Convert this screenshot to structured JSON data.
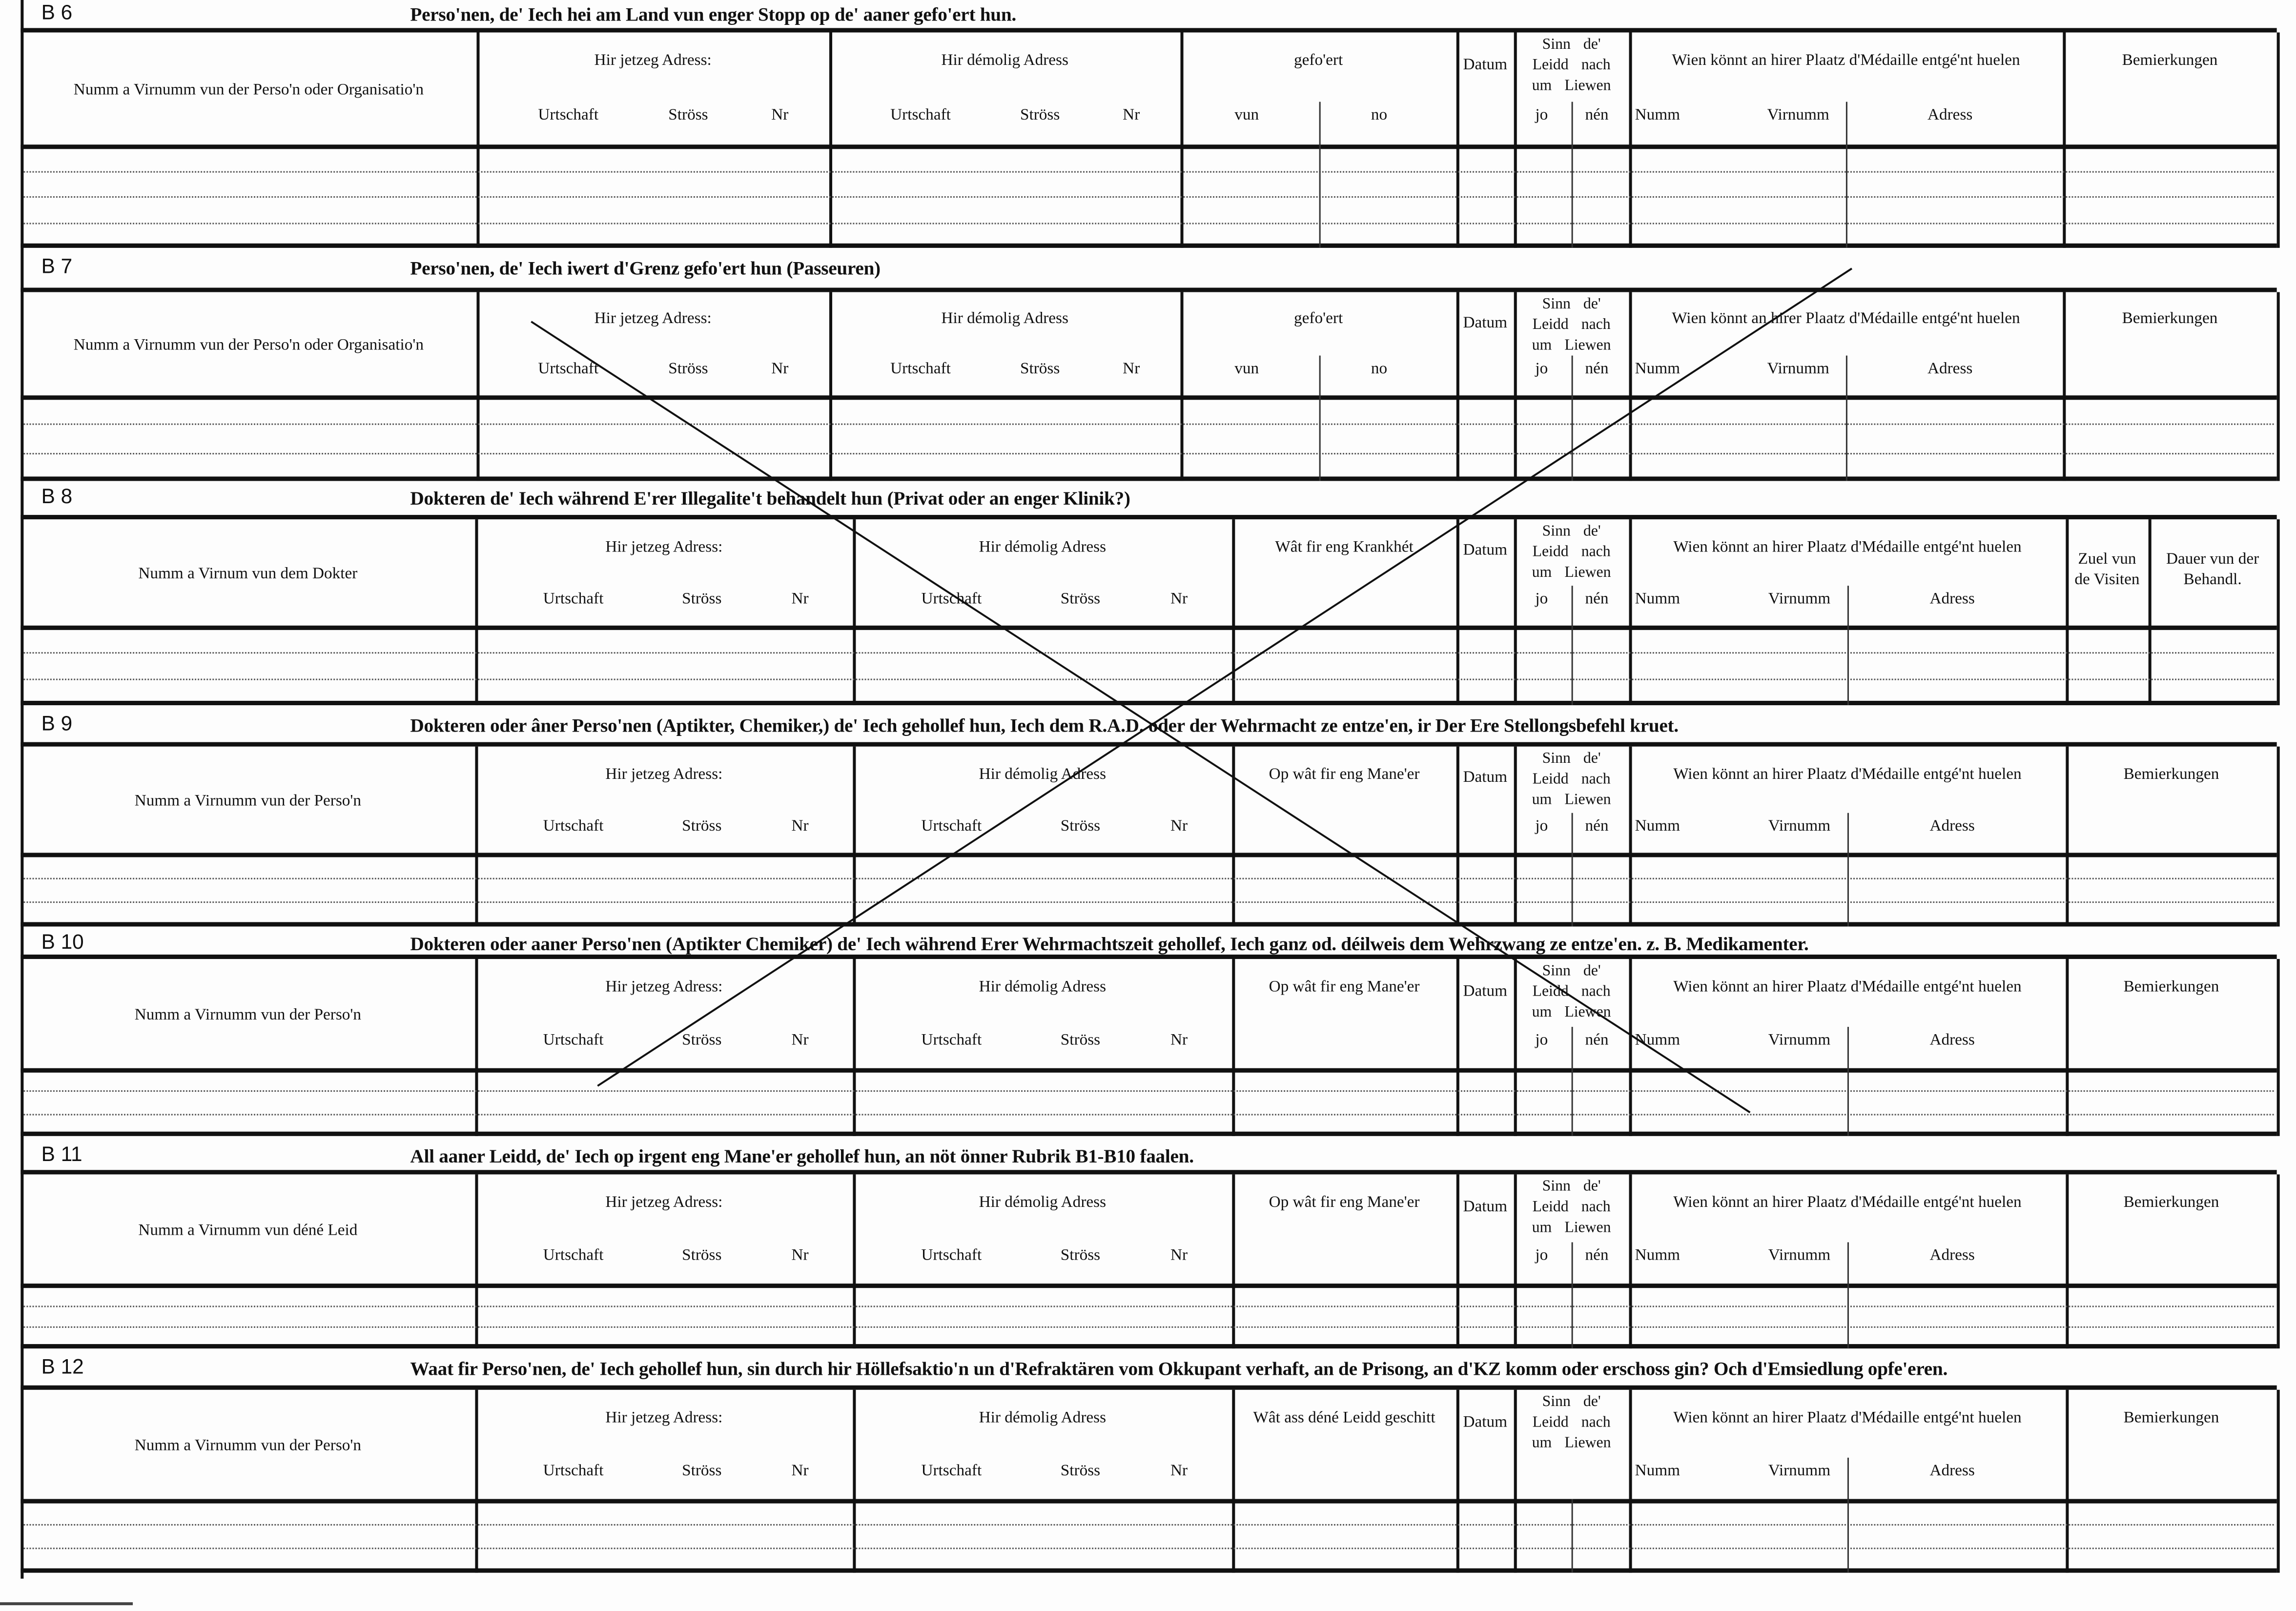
{
  "sections": [
    {
      "code": "B 6",
      "title": "Perso'nen, de' Iech hei am Land vun enger Stopp  op de' aaner gefo'ert hun.",
      "columns": [
        {
          "label": "Numm a Virnumm vun der Perso'n oder Organisatio'n"
        },
        {
          "label": "Hir jetzeg Adress:",
          "sub": [
            "Urtschaft",
            "Ströss",
            "Nr"
          ]
        },
        {
          "label": "Hir démolig Adress",
          "sub": [
            "Urtschaft",
            "Ströss",
            "Nr"
          ]
        },
        {
          "label": "gefo'ert",
          "sub": [
            "vun",
            "no"
          ]
        },
        {
          "label": "Datum"
        },
        {
          "label": "Sinn  de' Leidd  nach um Liewen",
          "sub": [
            "jo",
            "nén"
          ]
        },
        {
          "label": "Wien  könnt  an  hirer  Plaatz  d'Médaille entgé'nt huelen",
          "sub": [
            "Numm",
            "Virnumm",
            "Adress"
          ]
        },
        {
          "label": "Bemierkungen"
        }
      ]
    },
    {
      "code": "B 7",
      "title": "Perso'nen, de' Iech iwert d'Grenz gefo'ert hun  (Passeuren)",
      "columns": [
        {
          "label": "Numm a Virnumm vun der Perso'n oder Organisatio'n"
        },
        {
          "label": "Hir jetzeg Adress:",
          "sub": [
            "Urtschaft",
            "Ströss",
            "Nr"
          ]
        },
        {
          "label": "Hir démolig Adress",
          "sub": [
            "Urtschaft",
            "Ströss",
            "Nr"
          ]
        },
        {
          "label": "gefo'ert",
          "sub": [
            "vun",
            "no"
          ]
        },
        {
          "label": "Datum"
        },
        {
          "label": "Sinn  de' Leidd  nach um Liewen",
          "sub": [
            "jo",
            "nén"
          ]
        },
        {
          "label": "Wien  könnt  an  hirer  Plaatz  d'Médaille entgé'nt huelen",
          "sub": [
            "Numm",
            "Virnumm",
            "Adress"
          ]
        },
        {
          "label": "Bemierkungen"
        }
      ]
    },
    {
      "code": "B 8",
      "title": "Dokteren de' Iech während E'rer Illegalite't behandelt hun (Privat  oder an enger Klinik?)",
      "columns": [
        {
          "label": "Numm a Virnum vun dem Dokter"
        },
        {
          "label": "Hir jetzeg Adress:",
          "sub": [
            "Urtschaft",
            "Ströss",
            "Nr"
          ]
        },
        {
          "label": "Hir démolig Adress",
          "sub": [
            "Urtschaft",
            "Ströss",
            "Nr"
          ]
        },
        {
          "label": "Wât fir eng Krankhét"
        },
        {
          "label": "Datum"
        },
        {
          "label": "Sinn  de' Leidd  nach um Liewen",
          "sub": [
            "jo",
            "nén"
          ]
        },
        {
          "label": "Wien  könnt  an  hirer  Plaatz  d'Médaille entgé'nt huelen",
          "sub": [
            "Numm",
            "Virnumm",
            "Adress"
          ]
        },
        {
          "label": "Zuel vun de Visiten"
        },
        {
          "label": "Dauer vun der Behandl."
        }
      ]
    },
    {
      "code": "B 9",
      "title": "Dokteren oder âner Perso'nen (Aptikter, Chemiker,) de' Iech gehollef hun, Iech dem R.A.D. oder der Wehrmacht ze entze'en, ir Der Ere Stellongsbefehl kruet.",
      "columns": [
        {
          "label": "Numm a Virnumm vun der Perso'n"
        },
        {
          "label": "Hir jetzeg Adress:",
          "sub": [
            "Urtschaft",
            "Ströss",
            "Nr"
          ]
        },
        {
          "label": "Hir démolig Adress",
          "sub": [
            "Urtschaft",
            "Ströss",
            "Nr"
          ]
        },
        {
          "label": "Op wât fir eng Mane'er"
        },
        {
          "label": "Datum"
        },
        {
          "label": "Sinn  de' Leidd  nach um Liewen",
          "sub": [
            "jo",
            "nén"
          ]
        },
        {
          "label": "Wien  könnt  an  hirer  Plaatz  d'Médaille entgé'nt huelen",
          "sub": [
            "Numm",
            "Virnumm",
            "Adress"
          ]
        },
        {
          "label": "Bemierkungen"
        }
      ]
    },
    {
      "code": "B 10",
      "title": "Dokteren oder aaner Perso'nen (Aptikter Chemiker) de' Iech während Erer Wehrmachtszeit gehollef, Iech ganz od. déilweis dem Wehrzwang ze entze'en. z. B. Medikamenter.",
      "columns": [
        {
          "label": "Numm a Virnumm vun der Perso'n"
        },
        {
          "label": "Hir jetzeg Adress:",
          "sub": [
            "Urtschaft",
            "Ströss",
            "Nr"
          ]
        },
        {
          "label": "Hir démolig Adress",
          "sub": [
            "Urtschaft",
            "Ströss",
            "Nr"
          ]
        },
        {
          "label": "Op wât fir eng Mane'er"
        },
        {
          "label": "Datum"
        },
        {
          "label": "Sinn  de' Leidd  nach um Liewen",
          "sub": [
            "jo",
            "nén"
          ]
        },
        {
          "label": "Wien  könnt  an  hirer  Plaatz  d'Médaille entgé'nt huelen",
          "sub": [
            "Numm",
            "Virnumm",
            "Adress"
          ]
        },
        {
          "label": "Bemierkungen"
        }
      ]
    },
    {
      "code": "B 11",
      "title": "All aaner Leidd, de' Iech op irgent eng Mane'er  gehollef hun, an nöt önner Rubrik B1-B10 faalen.",
      "columns": [
        {
          "label": "Numm a Virnumm vun déné Leid"
        },
        {
          "label": "Hir jetzeg Adress:",
          "sub": [
            "Urtschaft",
            "Ströss",
            "Nr"
          ]
        },
        {
          "label": "Hir démolig Adress",
          "sub": [
            "Urtschaft",
            "Ströss",
            "Nr"
          ]
        },
        {
          "label": "Op wât fir eng Mane'er"
        },
        {
          "label": "Datum"
        },
        {
          "label": "Sinn  de' Leidd  nach um Liewen",
          "sub": [
            "jo",
            "nén"
          ]
        },
        {
          "label": "Wien  könnt  an  hirer  Plaatz  d'Médaille entgé'nt huelen",
          "sub": [
            "Numm",
            "Virnumm",
            "Adress"
          ]
        },
        {
          "label": "Bemierkungen"
        }
      ]
    },
    {
      "code": "B 12",
      "title": "Waat fir Perso'nen, de' Iech gehollef hun, sin durch hir Höllefsaktio'n un d'Refraktären vom Okkupant verhaft, an de Prisong, an d'KZ komm oder  erschoss gin? Och d'Emsiedlung opfe'eren.",
      "columns": [
        {
          "label": "Numm a Virnumm vun der Perso'n"
        },
        {
          "label": "Hir jetzeg Adress:",
          "sub": [
            "Urtschaft",
            "Ströss",
            "Nr"
          ]
        },
        {
          "label": "Hir démolig Adress",
          "sub": [
            "Urtschaft",
            "Ströss",
            "Nr"
          ]
        },
        {
          "label": "Wât ass déné Leidd geschitt"
        },
        {
          "label": "Datum"
        },
        {
          "label": "Sinn  de' Leidd  nach um Liewen"
        },
        {
          "label": "Wien  könnt  an  hirer  Plaatz  d'Médaille entgé'nt huelen",
          "sub": [
            "Numm",
            "Virnumm",
            "Adress"
          ]
        },
        {
          "label": "Bemierkungen"
        }
      ]
    }
  ],
  "annotations": {
    "crossed_out": true,
    "ink_color": "#111111"
  }
}
